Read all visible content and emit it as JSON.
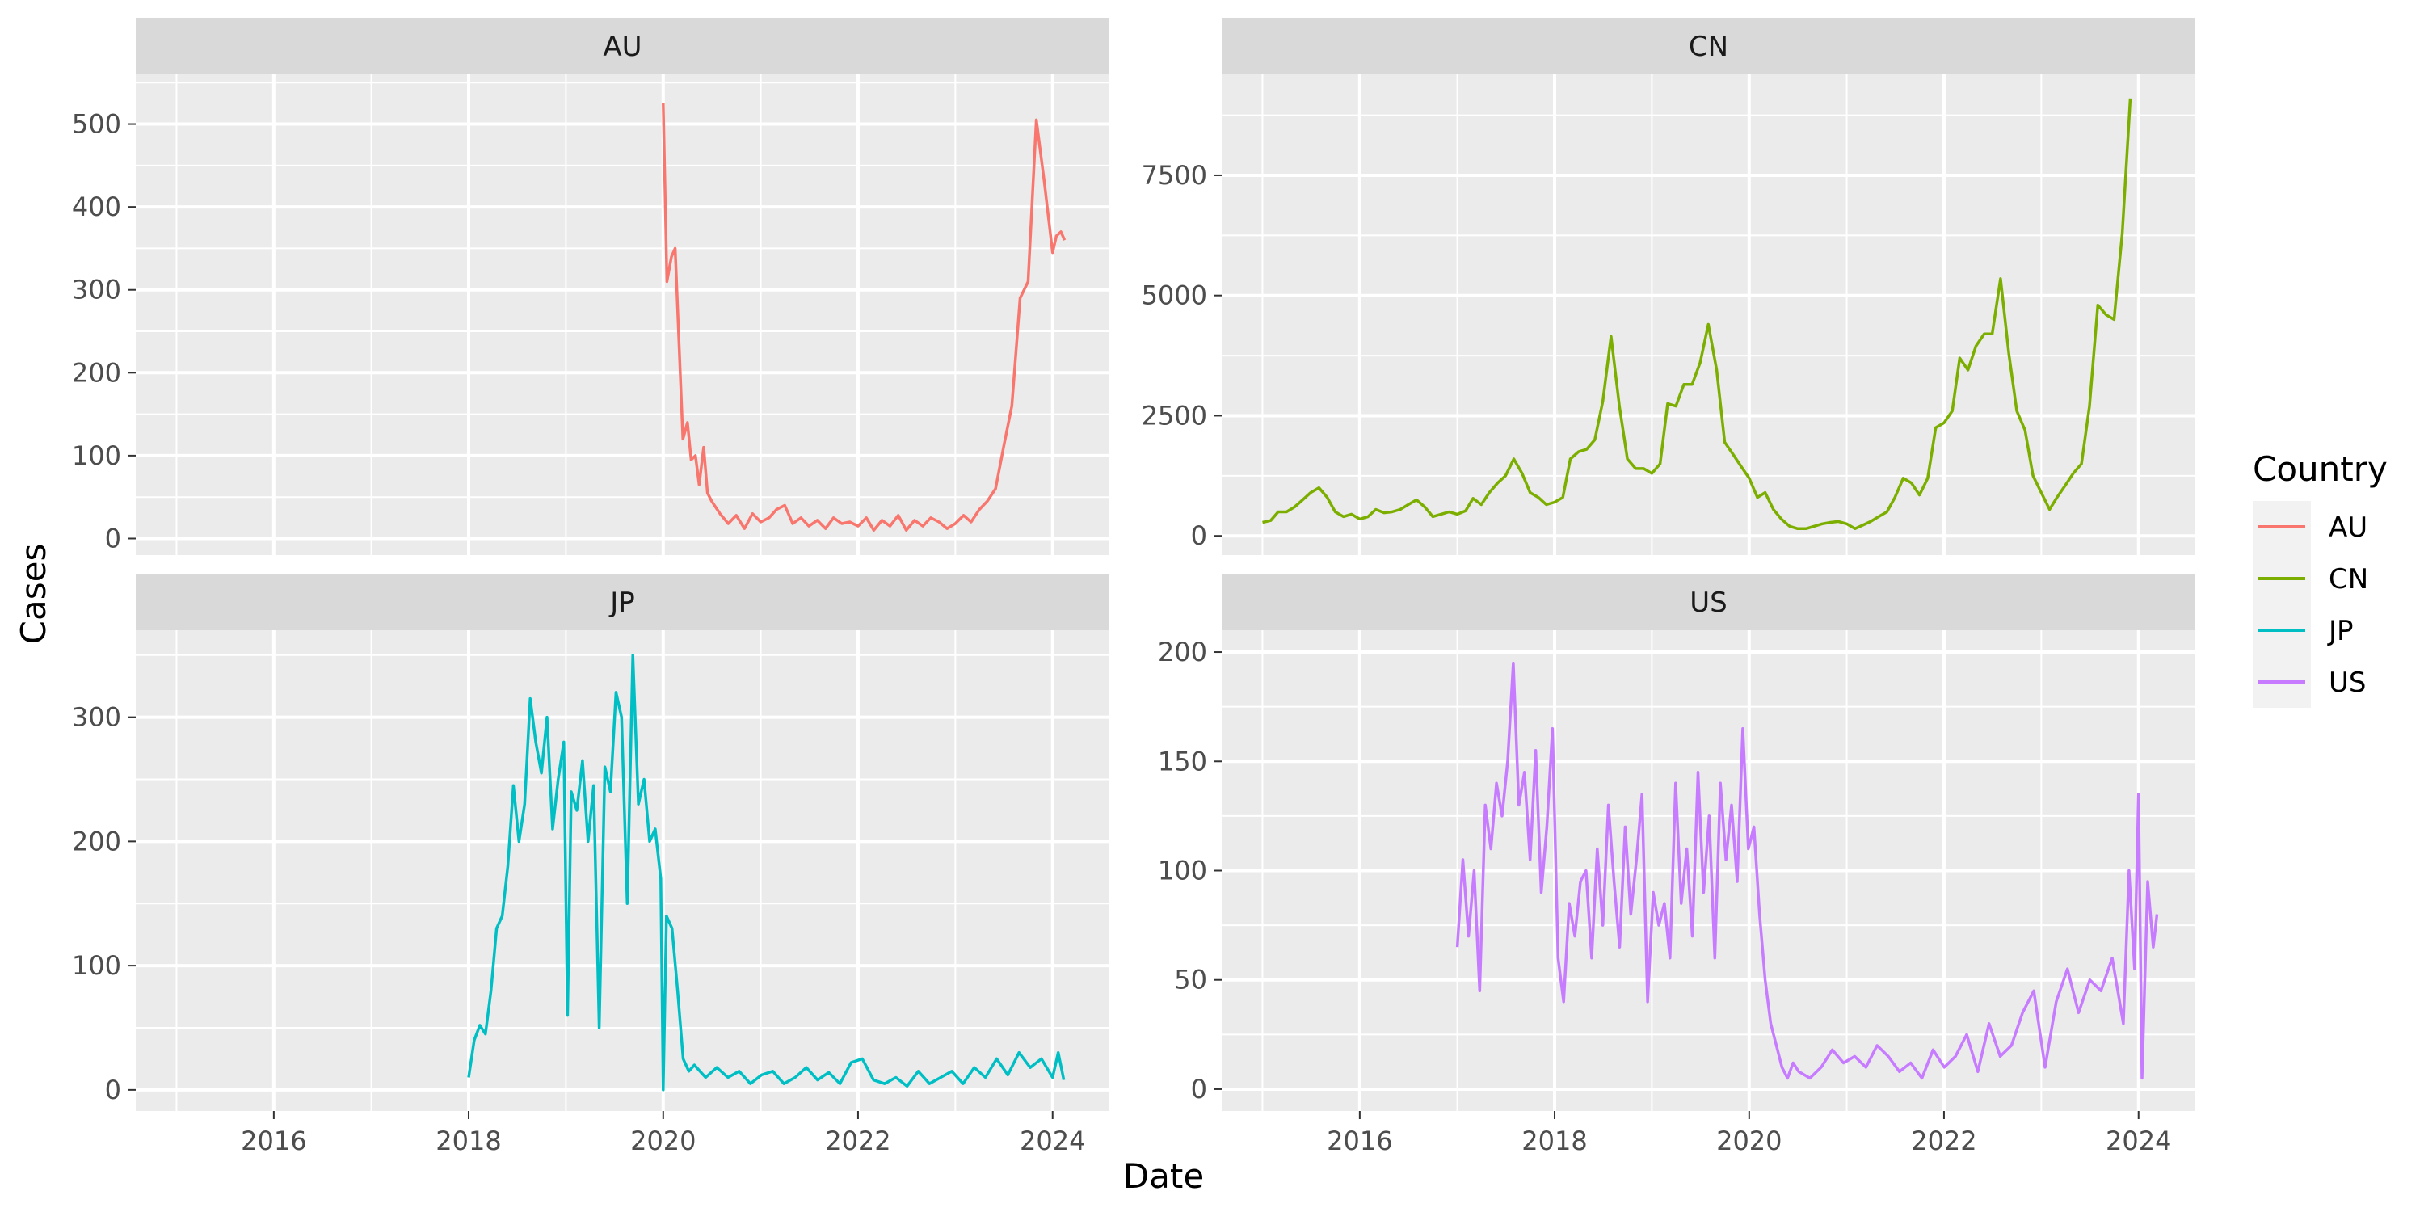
{
  "chart_data": {
    "type": "line",
    "xlabel": "Date",
    "ylabel": "Cases",
    "legend": {
      "title": "Country",
      "position": "right",
      "entries": [
        "AU",
        "CN",
        "JP",
        "US"
      ]
    },
    "colors": {
      "AU": "#F8766D",
      "CN": "#7CAE00",
      "JP": "#00BFC4",
      "US": "#C77CFF"
    },
    "grid": true,
    "facet_order": [
      "AU",
      "CN",
      "JP",
      "US"
    ],
    "xlim": [
      "2014-08-01",
      "2024-08-01"
    ],
    "x_ticks": [
      "2016",
      "2018",
      "2020",
      "2022",
      "2024"
    ],
    "panels": [
      {
        "name": "AU",
        "ylim": [
          -20,
          560
        ],
        "y_ticks": [
          0,
          100,
          200,
          300,
          400,
          500
        ],
        "x": [
          "2020-01-01",
          "2020-01-15",
          "2020-02-01",
          "2020-02-15",
          "2020-03-01",
          "2020-03-15",
          "2020-04-01",
          "2020-04-15",
          "2020-05-01",
          "2020-05-15",
          "2020-06-01",
          "2020-06-15",
          "2020-07-01",
          "2020-08-01",
          "2020-09-01",
          "2020-10-01",
          "2020-11-01",
          "2020-12-01",
          "2021-01-01",
          "2021-02-01",
          "2021-03-01",
          "2021-04-01",
          "2021-05-01",
          "2021-06-01",
          "2021-07-01",
          "2021-08-01",
          "2021-09-01",
          "2021-10-01",
          "2021-11-01",
          "2021-12-01",
          "2022-01-01",
          "2022-02-01",
          "2022-03-01",
          "2022-04-01",
          "2022-05-01",
          "2022-06-01",
          "2022-07-01",
          "2022-08-01",
          "2022-09-01",
          "2022-10-01",
          "2022-11-01",
          "2022-12-01",
          "2023-01-01",
          "2023-02-01",
          "2023-03-01",
          "2023-04-01",
          "2023-05-01",
          "2023-06-01",
          "2023-07-01",
          "2023-08-01",
          "2023-09-01",
          "2023-10-01",
          "2023-11-01",
          "2023-12-01",
          "2024-01-01",
          "2024-01-15",
          "2024-02-01",
          "2024-02-15"
        ],
        "y": [
          525,
          310,
          340,
          350,
          230,
          120,
          140,
          95,
          100,
          65,
          110,
          55,
          45,
          30,
          18,
          28,
          12,
          30,
          20,
          25,
          35,
          40,
          18,
          25,
          15,
          22,
          12,
          25,
          18,
          20,
          15,
          25,
          10,
          22,
          15,
          28,
          10,
          22,
          15,
          25,
          20,
          12,
          18,
          28,
          20,
          35,
          45,
          60,
          110,
          160,
          290,
          310,
          505,
          430,
          345,
          365,
          370,
          360
        ]
      },
      {
        "name": "CN",
        "ylim": [
          -400,
          9600
        ],
        "y_ticks": [
          0,
          2500,
          5000,
          7500
        ],
        "x": [
          "2015-01-01",
          "2015-02-01",
          "2015-03-01",
          "2015-04-01",
          "2015-05-01",
          "2015-06-01",
          "2015-07-01",
          "2015-08-01",
          "2015-09-01",
          "2015-10-01",
          "2015-11-01",
          "2015-12-01",
          "2016-01-01",
          "2016-02-01",
          "2016-03-01",
          "2016-04-01",
          "2016-05-01",
          "2016-06-01",
          "2016-07-01",
          "2016-08-01",
          "2016-09-01",
          "2016-10-01",
          "2016-11-01",
          "2016-12-01",
          "2017-01-01",
          "2017-02-01",
          "2017-03-01",
          "2017-04-01",
          "2017-05-01",
          "2017-06-01",
          "2017-07-01",
          "2017-08-01",
          "2017-09-01",
          "2017-10-01",
          "2017-11-01",
          "2017-12-01",
          "2018-01-01",
          "2018-02-01",
          "2018-03-01",
          "2018-04-01",
          "2018-05-01",
          "2018-06-01",
          "2018-07-01",
          "2018-08-01",
          "2018-09-01",
          "2018-10-01",
          "2018-11-01",
          "2018-12-01",
          "2019-01-01",
          "2019-02-01",
          "2019-03-01",
          "2019-04-01",
          "2019-05-01",
          "2019-06-01",
          "2019-07-01",
          "2019-08-01",
          "2019-09-01",
          "2019-10-01",
          "2019-11-01",
          "2019-12-01",
          "2020-01-01",
          "2020-02-01",
          "2020-03-01",
          "2020-04-01",
          "2020-05-01",
          "2020-06-01",
          "2020-07-01",
          "2020-08-01",
          "2020-09-01",
          "2020-10-01",
          "2020-11-01",
          "2020-12-01",
          "2021-01-01",
          "2021-02-01",
          "2021-03-01",
          "2021-04-01",
          "2021-05-01",
          "2021-06-01",
          "2021-07-01",
          "2021-08-01",
          "2021-09-01",
          "2021-10-01",
          "2021-11-01",
          "2021-12-01",
          "2022-01-01",
          "2022-02-01",
          "2022-03-01",
          "2022-04-01",
          "2022-05-01",
          "2022-06-01",
          "2022-07-01",
          "2022-08-01",
          "2022-09-01",
          "2022-10-01",
          "2022-11-01",
          "2022-12-01",
          "2023-01-01",
          "2023-02-01",
          "2023-03-01",
          "2023-04-01",
          "2023-05-01",
          "2023-06-01",
          "2023-07-01",
          "2023-08-01",
          "2023-09-01",
          "2023-10-01",
          "2023-11-01",
          "2023-12-01"
        ],
        "y": [
          280,
          320,
          500,
          500,
          600,
          750,
          900,
          1000,
          800,
          500,
          400,
          450,
          350,
          400,
          550,
          480,
          500,
          550,
          650,
          750,
          600,
          400,
          450,
          500,
          450,
          520,
          780,
          650,
          900,
          1100,
          1250,
          1600,
          1300,
          900,
          800,
          650,
          700,
          800,
          1600,
          1750,
          1800,
          2000,
          2800,
          4150,
          2700,
          1600,
          1400,
          1400,
          1300,
          1500,
          2750,
          2700,
          3150,
          3150,
          3600,
          4400,
          3450,
          1950,
          1700,
          1450,
          1200,
          800,
          900,
          550,
          350,
          200,
          150,
          150,
          200,
          250,
          280,
          300,
          250,
          150,
          220,
          300,
          400,
          500,
          800,
          1200,
          1100,
          850,
          1200,
          2250,
          2350,
          2600,
          3700,
          3450,
          3950,
          4200,
          4200,
          5350,
          3800,
          2600,
          2200,
          1250,
          900,
          550,
          800,
          1050,
          1300,
          1500,
          2700,
          4800,
          4600,
          4500,
          6300,
          9100
        ]
      },
      {
        "name": "JP",
        "ylim": [
          -17,
          370
        ],
        "y_ticks": [
          0,
          100,
          200,
          300
        ],
        "x": [
          "2018-01-01",
          "2018-01-22",
          "2018-02-12",
          "2018-03-05",
          "2018-03-26",
          "2018-04-16",
          "2018-05-07",
          "2018-05-28",
          "2018-06-18",
          "2018-07-09",
          "2018-07-30",
          "2018-08-20",
          "2018-09-10",
          "2018-10-01",
          "2018-10-22",
          "2018-11-12",
          "2018-12-03",
          "2018-12-24",
          "2019-01-07",
          "2019-01-21",
          "2019-02-11",
          "2019-03-04",
          "2019-03-25",
          "2019-04-15",
          "2019-05-06",
          "2019-05-27",
          "2019-06-17",
          "2019-07-08",
          "2019-07-29",
          "2019-08-19",
          "2019-09-09",
          "2019-09-30",
          "2019-10-21",
          "2019-11-11",
          "2019-12-02",
          "2019-12-23",
          "2020-01-01",
          "2020-01-13",
          "2020-02-03",
          "2020-02-24",
          "2020-03-16",
          "2020-04-06",
          "2020-04-27",
          "2020-05-18",
          "2020-06-08",
          "2020-07-20",
          "2020-08-31",
          "2020-10-12",
          "2020-11-23",
          "2021-01-04",
          "2021-02-15",
          "2021-03-29",
          "2021-05-10",
          "2021-06-21",
          "2021-08-02",
          "2021-09-13",
          "2021-10-25",
          "2021-12-06",
          "2022-01-17",
          "2022-02-28",
          "2022-04-11",
          "2022-05-23",
          "2022-07-04",
          "2022-08-15",
          "2022-09-26",
          "2022-11-07",
          "2022-12-19",
          "2023-01-30",
          "2023-03-13",
          "2023-04-24",
          "2023-06-05",
          "2023-07-17",
          "2023-08-28",
          "2023-10-09",
          "2023-11-20",
          "2024-01-01",
          "2024-01-22",
          "2024-02-12"
        ],
        "y": [
          10,
          40,
          52,
          45,
          80,
          130,
          140,
          180,
          245,
          200,
          230,
          315,
          280,
          255,
          300,
          210,
          250,
          280,
          60,
          240,
          225,
          265,
          200,
          245,
          50,
          260,
          240,
          320,
          300,
          150,
          350,
          230,
          250,
          200,
          210,
          170,
          0,
          140,
          130,
          80,
          25,
          15,
          20,
          15,
          10,
          18,
          10,
          15,
          5,
          12,
          15,
          5,
          10,
          18,
          8,
          14,
          5,
          22,
          25,
          8,
          5,
          10,
          3,
          15,
          5,
          10,
          15,
          5,
          18,
          10,
          25,
          12,
          30,
          18,
          25,
          10,
          30,
          8
        ]
      },
      {
        "name": "US",
        "ylim": [
          -10,
          210
        ],
        "y_ticks": [
          0,
          50,
          100,
          150,
          200
        ],
        "x": [
          "2017-01-01",
          "2017-01-22",
          "2017-02-12",
          "2017-03-05",
          "2017-03-26",
          "2017-04-16",
          "2017-05-07",
          "2017-05-28",
          "2017-06-18",
          "2017-07-09",
          "2017-07-30",
          "2017-08-20",
          "2017-09-10",
          "2017-10-01",
          "2017-10-22",
          "2017-11-12",
          "2017-12-03",
          "2017-12-24",
          "2018-01-14",
          "2018-02-04",
          "2018-02-25",
          "2018-03-18",
          "2018-04-08",
          "2018-04-29",
          "2018-05-20",
          "2018-06-10",
          "2018-07-01",
          "2018-07-22",
          "2018-08-12",
          "2018-09-02",
          "2018-09-23",
          "2018-10-14",
          "2018-11-04",
          "2018-11-25",
          "2018-12-16",
          "2019-01-06",
          "2019-01-27",
          "2019-02-17",
          "2019-03-10",
          "2019-03-31",
          "2019-04-21",
          "2019-05-12",
          "2019-06-02",
          "2019-06-23",
          "2019-07-14",
          "2019-08-04",
          "2019-08-25",
          "2019-09-15",
          "2019-10-06",
          "2019-10-27",
          "2019-11-17",
          "2019-12-08",
          "2019-12-29",
          "2020-01-19",
          "2020-02-09",
          "2020-03-01",
          "2020-03-22",
          "2020-04-12",
          "2020-05-03",
          "2020-05-24",
          "2020-06-14",
          "2020-07-05",
          "2020-08-16",
          "2020-09-27",
          "2020-11-08",
          "2020-12-20",
          "2021-01-31",
          "2021-03-14",
          "2021-04-25",
          "2021-06-06",
          "2021-07-18",
          "2021-08-29",
          "2021-10-10",
          "2021-11-21",
          "2022-01-02",
          "2022-02-13",
          "2022-03-27",
          "2022-05-08",
          "2022-06-19",
          "2022-07-31",
          "2022-09-11",
          "2022-10-23",
          "2022-12-04",
          "2023-01-15",
          "2023-02-26",
          "2023-04-09",
          "2023-05-21",
          "2023-07-02",
          "2023-08-13",
          "2023-09-24",
          "2023-11-05",
          "2023-11-26",
          "2023-12-17",
          "2024-01-01",
          "2024-01-14",
          "2024-02-04",
          "2024-02-25",
          "2024-03-10"
        ],
        "y": [
          65,
          105,
          70,
          100,
          45,
          130,
          110,
          140,
          125,
          150,
          195,
          130,
          145,
          105,
          155,
          90,
          120,
          165,
          60,
          40,
          85,
          70,
          95,
          100,
          60,
          110,
          75,
          130,
          95,
          65,
          120,
          80,
          105,
          135,
          40,
          90,
          75,
          85,
          60,
          140,
          85,
          110,
          70,
          145,
          90,
          125,
          60,
          140,
          105,
          130,
          95,
          165,
          110,
          120,
          80,
          50,
          30,
          20,
          10,
          5,
          12,
          8,
          5,
          10,
          18,
          12,
          15,
          10,
          20,
          15,
          8,
          12,
          5,
          18,
          10,
          15,
          25,
          8,
          30,
          15,
          20,
          35,
          45,
          10,
          40,
          55,
          35,
          50,
          45,
          60,
          30,
          100,
          55,
          135,
          5,
          95,
          65,
          80
        ]
      }
    ]
  }
}
